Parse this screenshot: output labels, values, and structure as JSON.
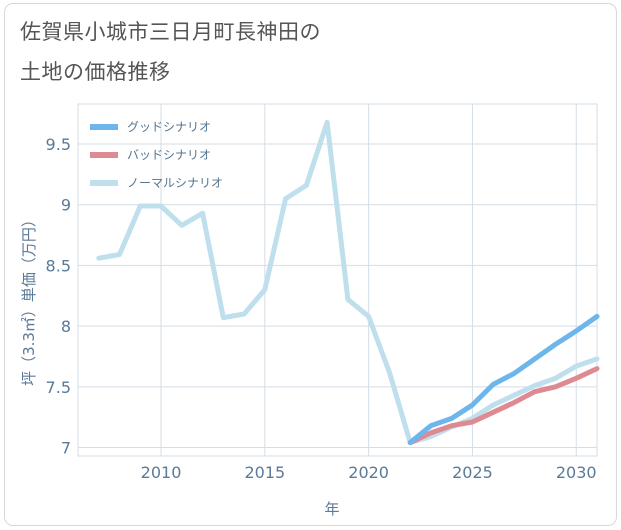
{
  "title_line1": "佐賀県小城市三日月町長神田の",
  "title_line2": "土地の価格推移",
  "chart_data": {
    "type": "line",
    "xlabel": "年",
    "ylabel": "坪（3.3㎡）単価（万円）",
    "xlim": [
      2006,
      2031
    ],
    "ylim": [
      6.93,
      9.83
    ],
    "xticks": [
      2010,
      2015,
      2020,
      2025,
      2030
    ],
    "yticks": [
      7,
      7.5,
      8,
      8.5,
      9,
      9.5
    ],
    "ytick_labels": [
      "7",
      "7.5",
      "8",
      "8.5",
      "9",
      "9.5"
    ],
    "xtick_labels": [
      "2010",
      "2015",
      "2020",
      "2025",
      "2030"
    ],
    "legend": [
      {
        "name": "グッドシナリオ",
        "color": "#6cb6ec"
      },
      {
        "name": "バッドシナリオ",
        "color": "#de8a92"
      },
      {
        "name": "ノーマルシナリオ",
        "color": "#bfdfec"
      }
    ],
    "series": [
      {
        "name": "グッドシナリオ",
        "color": "#6cb6ec",
        "x": [
          2022,
          2023,
          2024,
          2025,
          2026,
          2027,
          2028,
          2029,
          2030,
          2031
        ],
        "y": [
          7.04,
          7.18,
          7.24,
          7.35,
          7.52,
          7.61,
          7.73,
          7.85,
          7.96,
          8.08
        ]
      },
      {
        "name": "バッドシナリオ",
        "color": "#de8a92",
        "x": [
          2022,
          2023,
          2024,
          2025,
          2026,
          2027,
          2028,
          2029,
          2030,
          2031
        ],
        "y": [
          7.04,
          7.12,
          7.18,
          7.21,
          7.29,
          7.37,
          7.46,
          7.5,
          7.57,
          7.65
        ]
      },
      {
        "name": "ノーマルシナリオ",
        "color": "#bfdfec",
        "x": [
          2007,
          2008,
          2009,
          2010,
          2011,
          2012,
          2013,
          2014,
          2015,
          2016,
          2017,
          2018,
          2019,
          2020,
          2021,
          2022,
          2023,
          2024,
          2025,
          2026,
          2027,
          2028,
          2029,
          2030,
          2031
        ],
        "y": [
          8.56,
          8.59,
          8.99,
          8.99,
          8.83,
          8.93,
          8.07,
          8.1,
          8.3,
          9.05,
          9.16,
          9.68,
          8.22,
          8.08,
          7.62,
          7.04,
          7.09,
          7.17,
          7.24,
          7.35,
          7.43,
          7.51,
          7.57,
          7.67,
          7.73
        ]
      }
    ]
  }
}
